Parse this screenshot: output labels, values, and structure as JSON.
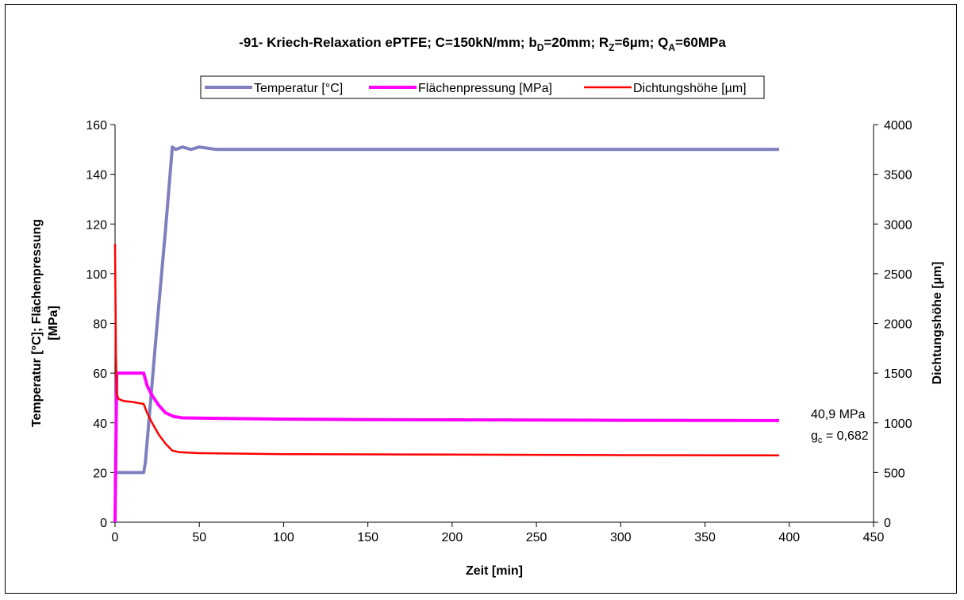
{
  "chart_data": {
    "type": "line",
    "title_parts": {
      "prefix": "-91- Kriech-Relaxation ePTFE; C=150kN/mm; b",
      "sub1": "D",
      "mid1": "=20mm; R",
      "sub2": "Z",
      "mid2": "=6µm; Q",
      "sub3": "A",
      "suffix": "=60MPa"
    },
    "xlabel": "Zeit [min]",
    "ylabel_left_line1": "Temperatur [°C]; Flächenpressung",
    "ylabel_left_line2": "[MPa]",
    "ylabel_right": "Dichtungshöhe [µm]",
    "xlim": [
      0,
      450
    ],
    "ylim_left": [
      0,
      160
    ],
    "ylim_right": [
      0,
      4000
    ],
    "x_ticks": [
      "0",
      "50",
      "100",
      "150",
      "200",
      "250",
      "300",
      "350",
      "400",
      "450"
    ],
    "y_left_ticks": [
      "0",
      "20",
      "40",
      "60",
      "80",
      "100",
      "120",
      "140",
      "160"
    ],
    "y_right_ticks": [
      "0",
      "500",
      "1000",
      "1500",
      "2000",
      "2500",
      "3000",
      "3500",
      "4000"
    ],
    "legend_position": "top-center",
    "grid": false,
    "series": [
      {
        "name": "Temperatur [°C]",
        "axis": "left",
        "color": "#7f7fbf",
        "points": [
          [
            0,
            20
          ],
          [
            17,
            20
          ],
          [
            18,
            24
          ],
          [
            20,
            40
          ],
          [
            25,
            80
          ],
          [
            30,
            118
          ],
          [
            34,
            151
          ],
          [
            36,
            150
          ],
          [
            40,
            151
          ],
          [
            45,
            150
          ],
          [
            50,
            151
          ],
          [
            60,
            150
          ],
          [
            100,
            150
          ],
          [
            200,
            150
          ],
          [
            300,
            150
          ],
          [
            394,
            150
          ]
        ]
      },
      {
        "name": "Flächenpressung [MPa]",
        "axis": "left",
        "color": "#ff00ff",
        "points": [
          [
            0,
            0
          ],
          [
            1,
            60
          ],
          [
            17,
            60
          ],
          [
            19,
            55
          ],
          [
            22,
            51
          ],
          [
            26,
            47
          ],
          [
            30,
            44
          ],
          [
            35,
            42.5
          ],
          [
            40,
            42
          ],
          [
            60,
            41.8
          ],
          [
            100,
            41.5
          ],
          [
            150,
            41.3
          ],
          [
            200,
            41.2
          ],
          [
            300,
            41.0
          ],
          [
            394,
            40.9
          ]
        ]
      },
      {
        "name": "Dichtungshöhe [µm]",
        "axis": "right",
        "color": "#ff0000",
        "points": [
          [
            0,
            2800
          ],
          [
            0.5,
            1700
          ],
          [
            1,
            1300
          ],
          [
            2,
            1240
          ],
          [
            5,
            1220
          ],
          [
            10,
            1210
          ],
          [
            17,
            1190
          ],
          [
            19,
            1100
          ],
          [
            22,
            1000
          ],
          [
            26,
            880
          ],
          [
            30,
            790
          ],
          [
            34,
            720
          ],
          [
            38,
            705
          ],
          [
            50,
            695
          ],
          [
            100,
            685
          ],
          [
            200,
            680
          ],
          [
            300,
            675
          ],
          [
            394,
            672
          ]
        ]
      }
    ],
    "annotations": {
      "pressure": "40,9 MPa",
      "gc_prefix": "g",
      "gc_sub": "c",
      "gc_suffix": " = 0,682"
    }
  }
}
